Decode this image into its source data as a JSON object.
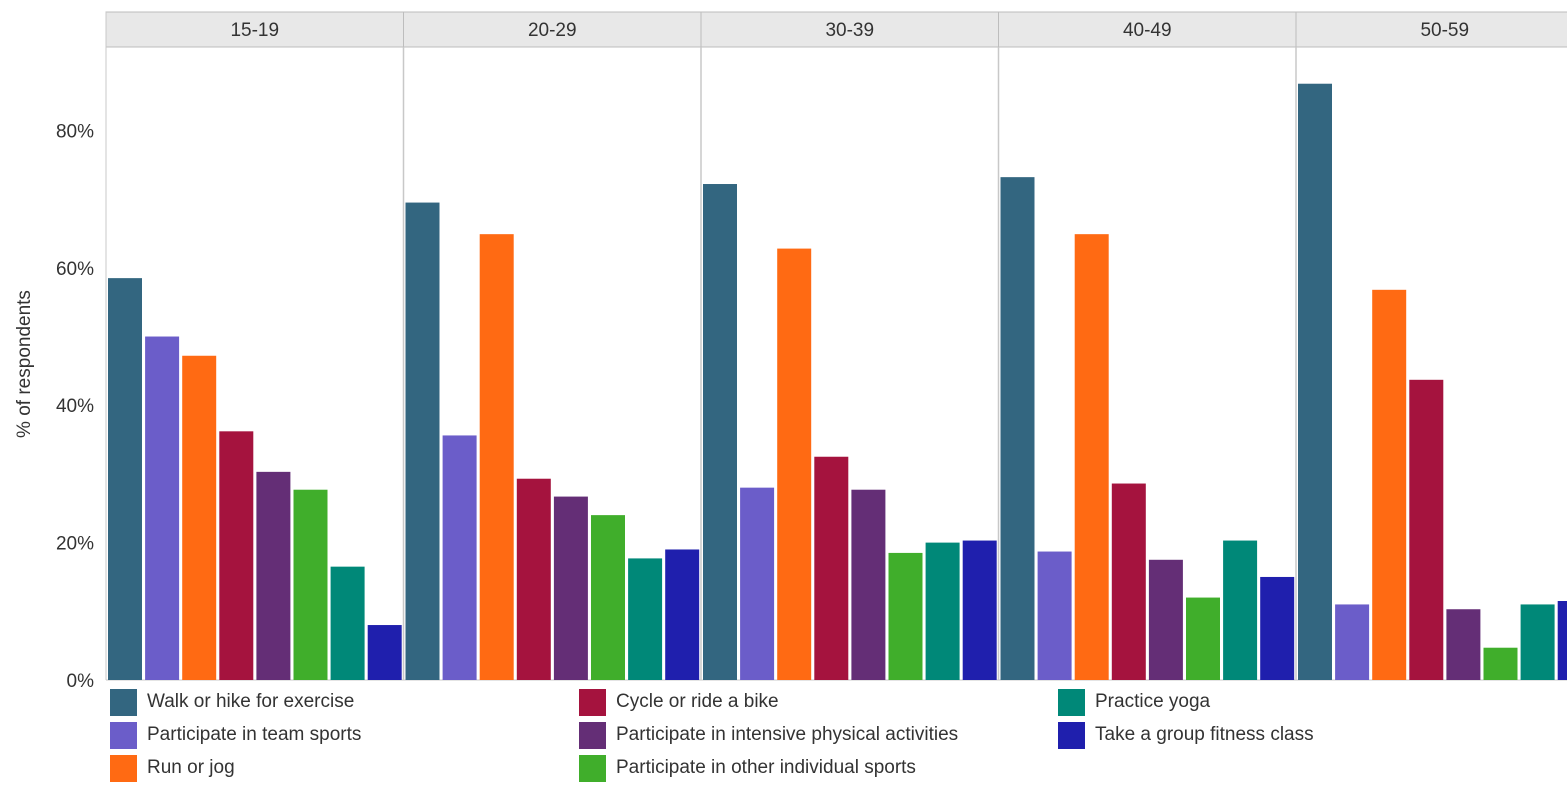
{
  "chart_data": {
    "type": "bar",
    "ylabel": "% of respondents",
    "ylim": [
      0,
      0.92
    ],
    "yticks": [
      {
        "value": 0,
        "label": "0%"
      },
      {
        "value": 0.2,
        "label": "20%"
      },
      {
        "value": 0.4,
        "label": "40%"
      },
      {
        "value": 0.6,
        "label": "60%"
      },
      {
        "value": 0.8,
        "label": "80%"
      }
    ],
    "panels": [
      "15-19",
      "20-29",
      "30-39",
      "40-49",
      "50-59"
    ],
    "grid": false,
    "legend_placement": "bottom",
    "series": [
      {
        "name": "Walk or hike for exercise",
        "color": "#336680",
        "values": [
          0.585,
          0.695,
          0.722,
          0.732,
          0.868
        ]
      },
      {
        "name": "Participate in team sports",
        "color": "#6b5dc9",
        "values": [
          0.5,
          0.356,
          0.28,
          0.187,
          0.11
        ]
      },
      {
        "name": "Run or jog",
        "color": "#ff6a13",
        "values": [
          0.472,
          0.649,
          0.628,
          0.649,
          0.568
        ]
      },
      {
        "name": "Cycle or ride a bike",
        "color": "#a5133e",
        "values": [
          0.362,
          0.293,
          0.325,
          0.286,
          0.437
        ]
      },
      {
        "name": "Participate in intensive physical activities",
        "color": "#642e76",
        "values": [
          0.303,
          0.267,
          0.277,
          0.175,
          0.103
        ]
      },
      {
        "name": "Participate in other individual sports",
        "color": "#40ae2b",
        "values": [
          0.277,
          0.24,
          0.185,
          0.12,
          0.047
        ]
      },
      {
        "name": "Practice yoga",
        "color": "#008878",
        "values": [
          0.165,
          0.177,
          0.2,
          0.203,
          0.11
        ]
      },
      {
        "name": "Take a group fitness class",
        "color": "#1f1fad",
        "values": [
          0.08,
          0.19,
          0.203,
          0.15,
          0.115
        ]
      }
    ]
  }
}
